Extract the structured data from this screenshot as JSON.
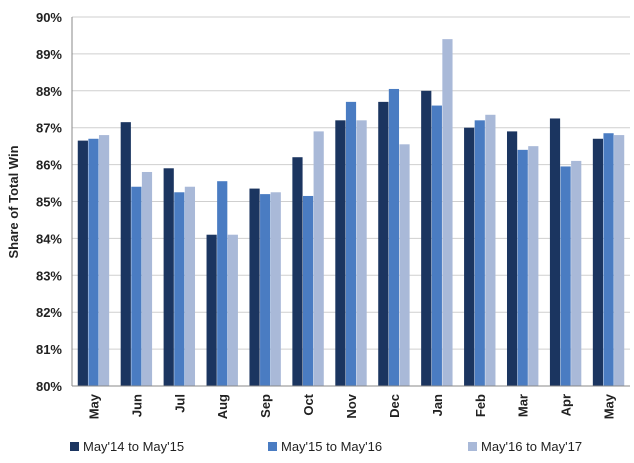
{
  "chart_data": {
    "type": "bar",
    "title": "",
    "xlabel": "",
    "ylabel": "Share of Total Win",
    "ylim": [
      80,
      90
    ],
    "yticks": [
      "80%",
      "81%",
      "82%",
      "83%",
      "84%",
      "85%",
      "86%",
      "87%",
      "88%",
      "89%",
      "90%"
    ],
    "categories": [
      "May",
      "Jun",
      "Jul",
      "Aug",
      "Sep",
      "Oct",
      "Nov",
      "Dec",
      "Jan",
      "Feb",
      "Mar",
      "Apr",
      "May"
    ],
    "series": [
      {
        "name": "May'14 to May'15",
        "color": "#1b3560",
        "values": [
          86.65,
          87.15,
          85.9,
          84.1,
          85.35,
          86.2,
          87.2,
          87.7,
          88.0,
          87.0,
          86.9,
          87.25,
          86.7
        ]
      },
      {
        "name": "May'15 to May'16",
        "color": "#4a7cc2",
        "values": [
          86.7,
          85.4,
          85.25,
          85.55,
          85.2,
          85.15,
          87.7,
          88.05,
          87.6,
          87.2,
          86.4,
          85.95,
          86.85
        ]
      },
      {
        "name": "May'16 to May'17",
        "color": "#a9b9d8",
        "values": [
          86.8,
          85.8,
          85.4,
          84.1,
          85.25,
          86.9,
          87.2,
          86.55,
          89.4,
          87.35,
          86.5,
          86.1,
          86.8
        ]
      }
    ],
    "grid": true,
    "legend": "bottom"
  }
}
